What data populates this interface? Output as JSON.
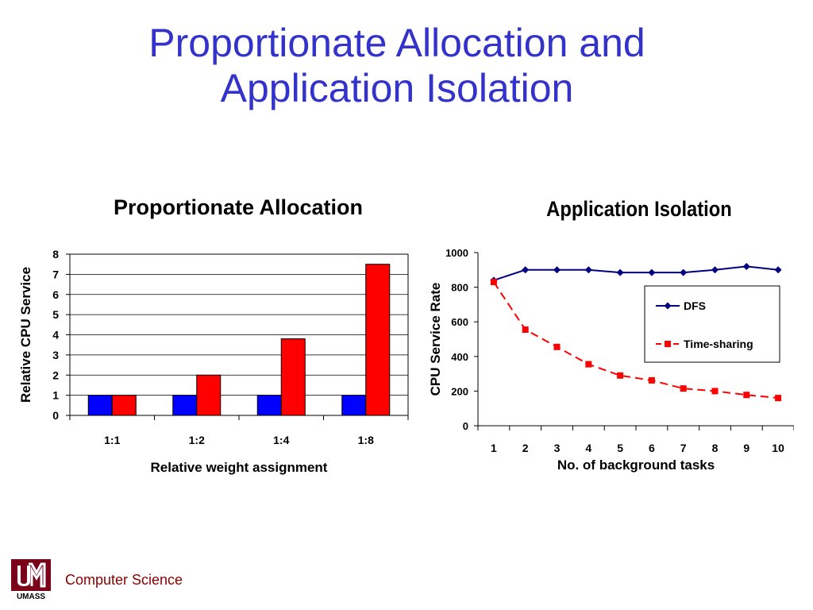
{
  "slide": {
    "title_line1": "Proportionate Allocation and",
    "title_line2": "Application Isolation",
    "footer_text": "Computer Science",
    "logo_text": "UMASS",
    "colors": {
      "title": "#3333cc",
      "footer": "#880000"
    }
  },
  "chart_data": [
    {
      "type": "bar",
      "title": "Proportionate Allocation",
      "xlabel": "Relative weight assignment",
      "ylabel": "Relative CPU Service",
      "categories": [
        "1:1",
        "1:2",
        "1:4",
        "1:8"
      ],
      "ylim": [
        0,
        8
      ],
      "yticks": [
        "0",
        "1",
        "2",
        "3",
        "4",
        "5",
        "6",
        "7",
        "8"
      ],
      "grid": true,
      "legend": "none",
      "series": [
        {
          "values": [
            1,
            1,
            1,
            1
          ],
          "color": "#0000ff"
        },
        {
          "values": [
            1,
            2,
            3.8,
            7.5
          ],
          "color": "#ff0000"
        }
      ]
    },
    {
      "type": "line",
      "title": "Application Isolation",
      "xlabel": "No. of background tasks",
      "ylabel": "CPU Service Rate",
      "x": [
        1,
        2,
        3,
        4,
        5,
        6,
        7,
        8,
        9,
        10
      ],
      "xticks": [
        "1",
        "2",
        "3",
        "4",
        "5",
        "6",
        "7",
        "8",
        "9",
        "10"
      ],
      "ylim": [
        0,
        1000
      ],
      "yticks": [
        "0",
        "200",
        "400",
        "600",
        "800",
        "1000"
      ],
      "grid": false,
      "legend": "top-right",
      "series": [
        {
          "name": "DFS",
          "values": [
            840,
            900,
            900,
            900,
            885,
            885,
            885,
            900,
            920,
            900
          ],
          "color": "#000080",
          "marker": "diamond",
          "dash": "solid"
        },
        {
          "name": "Time-sharing",
          "values": [
            830,
            555,
            455,
            355,
            290,
            262,
            215,
            200,
            178,
            160
          ],
          "color": "#ff0000",
          "marker": "square",
          "dash": "dashed"
        }
      ]
    }
  ]
}
